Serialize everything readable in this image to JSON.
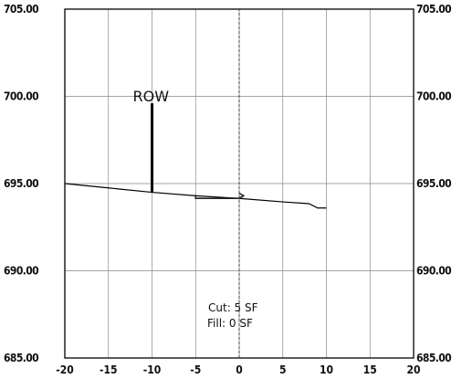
{
  "chart_data": {
    "type": "line",
    "title": "",
    "xlabel": "",
    "ylabel": "",
    "xlim": [
      -20,
      20
    ],
    "ylim": [
      685,
      705
    ],
    "grid": true,
    "x_ticks": [
      -20,
      -15,
      -10,
      -5,
      0,
      5,
      10,
      15,
      20
    ],
    "x_tick_labels": [
      "-20",
      "-15",
      "-10",
      "-5",
      "0",
      "5",
      "10",
      "15",
      "20"
    ],
    "y_ticks": [
      705,
      700,
      695,
      690,
      685
    ],
    "y_tick_labels": [
      "705.00",
      "700.00",
      "695.00",
      "690.00",
      "685.00"
    ],
    "ground_profile": {
      "x": [
        -20,
        -15,
        -10,
        -5,
        0,
        5,
        8,
        9,
        10
      ],
      "y": [
        695.0,
        694.75,
        694.5,
        694.3,
        694.15,
        693.95,
        693.85,
        693.6,
        693.6
      ]
    },
    "centerline": {
      "x": 0,
      "y_range": [
        685,
        705
      ]
    },
    "row_marker": {
      "label": "ROW",
      "x": -10,
      "y_range": [
        694.5,
        699.6
      ]
    },
    "section_template": {
      "x": [
        -5,
        -5,
        0,
        0.5,
        0
      ],
      "y": [
        694.35,
        694.15,
        694.15,
        694.3,
        694.45
      ],
      "color": "#222222"
    },
    "annotations": {
      "cut": "Cut: 5  SF",
      "fill": "Fill: 0  SF"
    }
  }
}
